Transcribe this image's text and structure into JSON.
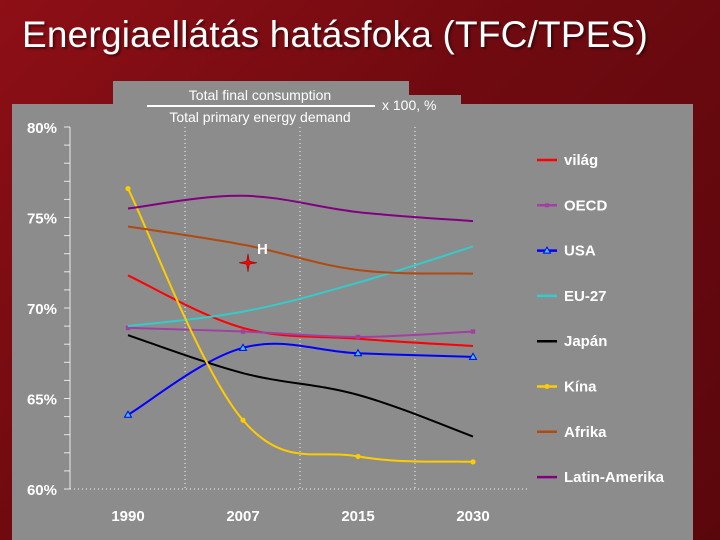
{
  "title": "Energiaellátás hatásfoka (TFC/TPES)",
  "formula": {
    "numerator": "Total final consumption",
    "denominator": "Total primary energy demand",
    "multiplier": "x 100, %"
  },
  "colors": {
    "background": "#7a0c12",
    "plot": "#8c8c8c"
  },
  "chart_data": {
    "type": "line",
    "title": "Energiaellátás hatásfoka (TFC/TPES)",
    "x": [
      1990,
      2007,
      2015,
      2030
    ],
    "x_tick_labels": [
      "1990",
      "2007",
      "2015",
      "2030"
    ],
    "y_tick_labels": [
      "80%",
      "75%",
      "70%",
      "65%",
      "60%"
    ],
    "ylim": [
      60,
      80
    ],
    "legend_position": "right",
    "series": [
      {
        "name": "világ",
        "color": "#ff0000",
        "marker": "none",
        "values": [
          71.8,
          68.9,
          68.3,
          67.9
        ]
      },
      {
        "name": "OECD",
        "color": "#a040a0",
        "marker": "square",
        "values": [
          68.9,
          68.7,
          68.4,
          68.7
        ]
      },
      {
        "name": "USA",
        "color": "#0000ff",
        "marker": "triangle",
        "values": [
          64.1,
          67.8,
          67.5,
          67.3
        ]
      },
      {
        "name": "EU-27",
        "color": "#33cccc",
        "marker": "none",
        "values": [
          69.0,
          69.8,
          71.4,
          73.4
        ]
      },
      {
        "name": "Japán",
        "color": "#000000",
        "marker": "none",
        "values": [
          68.5,
          66.4,
          65.2,
          62.9
        ]
      },
      {
        "name": "Kína",
        "color": "#ffcc00",
        "marker": "circle",
        "values": [
          76.6,
          63.8,
          61.8,
          61.5
        ]
      },
      {
        "name": "Afrika",
        "color": "#b04a10",
        "marker": "none",
        "values": [
          74.5,
          73.5,
          72.1,
          71.9
        ]
      },
      {
        "name": "Latin-Amerika",
        "color": "#800080",
        "marker": "none",
        "values": [
          75.5,
          76.2,
          75.3,
          74.8
        ]
      }
    ],
    "annotations": [
      {
        "label": "H",
        "x": 2007,
        "y": 72.5,
        "color": "#ff0000"
      }
    ]
  }
}
